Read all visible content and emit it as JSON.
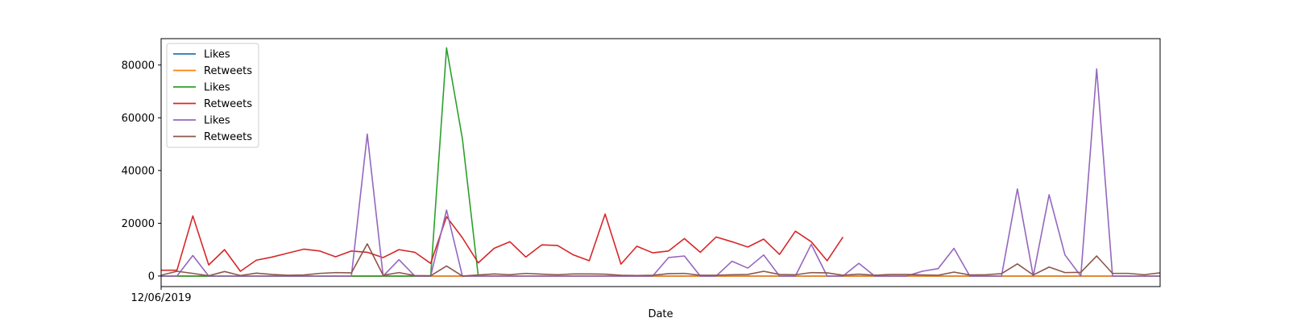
{
  "chart_data": {
    "type": "line",
    "title": "",
    "xlabel": "Date",
    "ylabel": "",
    "x_tick_labels": [
      "12/06/2019"
    ],
    "x_tick_positions": [
      0
    ],
    "x_range": [
      0,
      63
    ],
    "ylim": [
      -4000,
      90000
    ],
    "y_ticks": [
      0,
      20000,
      40000,
      60000,
      80000
    ],
    "y_tick_labels": [
      "0",
      "20000",
      "40000",
      "60000",
      "80000"
    ],
    "grid": false,
    "legend_position": "upper-left",
    "series": [
      {
        "name": "Likes",
        "color": "#1f77b4",
        "points": [
          [
            0,
            0
          ],
          [
            1,
            0
          ],
          [
            2,
            0
          ],
          [
            3,
            0
          ],
          [
            4,
            0
          ],
          [
            5,
            0
          ],
          [
            6,
            0
          ],
          [
            7,
            0
          ],
          [
            8,
            0
          ],
          [
            9,
            0
          ],
          [
            10,
            0
          ],
          [
            11,
            0
          ],
          [
            12,
            0
          ],
          [
            13,
            0
          ],
          [
            14,
            0
          ],
          [
            15,
            0
          ],
          [
            16,
            0
          ],
          [
            17,
            0
          ],
          [
            18,
            0
          ],
          [
            19,
            0
          ],
          [
            20,
            0
          ],
          [
            21,
            0
          ],
          [
            22,
            0
          ],
          [
            23,
            0
          ],
          [
            24,
            0
          ],
          [
            25,
            0
          ],
          [
            26,
            0
          ],
          [
            27,
            0
          ],
          [
            28,
            0
          ],
          [
            29,
            0
          ],
          [
            30,
            0
          ],
          [
            31,
            0
          ],
          [
            32,
            0
          ],
          [
            33,
            0
          ],
          [
            34,
            0
          ],
          [
            35,
            0
          ],
          [
            36,
            0
          ],
          [
            37,
            0
          ],
          [
            38,
            0
          ],
          [
            39,
            0
          ],
          [
            40,
            0
          ],
          [
            41,
            0
          ],
          [
            42,
            0
          ],
          [
            43,
            0
          ],
          [
            44,
            0
          ],
          [
            45,
            0
          ],
          [
            46,
            0
          ],
          [
            47,
            0
          ],
          [
            48,
            0
          ],
          [
            49,
            0
          ],
          [
            50,
            0
          ],
          [
            51,
            0
          ],
          [
            52,
            0
          ],
          [
            53,
            0
          ],
          [
            54,
            0
          ],
          [
            55,
            0
          ],
          [
            56,
            0
          ],
          [
            57,
            0
          ],
          [
            58,
            0
          ],
          [
            59,
            0
          ],
          [
            60,
            0
          ],
          [
            61,
            0
          ],
          [
            62,
            0
          ],
          [
            63,
            0
          ]
        ]
      },
      {
        "name": "Retweets",
        "color": "#ff7f0e",
        "points": [
          [
            0,
            0
          ],
          [
            1,
            0
          ],
          [
            2,
            0
          ],
          [
            3,
            0
          ],
          [
            4,
            0
          ],
          [
            5,
            0
          ],
          [
            6,
            0
          ],
          [
            7,
            0
          ],
          [
            8,
            0
          ],
          [
            9,
            0
          ],
          [
            10,
            0
          ],
          [
            11,
            0
          ],
          [
            12,
            0
          ],
          [
            13,
            0
          ],
          [
            14,
            0
          ],
          [
            15,
            0
          ],
          [
            16,
            0
          ],
          [
            17,
            0
          ],
          [
            18,
            0
          ],
          [
            19,
            0
          ],
          [
            20,
            0
          ],
          [
            21,
            0
          ],
          [
            22,
            0
          ],
          [
            23,
            0
          ],
          [
            24,
            0
          ],
          [
            25,
            0
          ],
          [
            26,
            0
          ],
          [
            27,
            0
          ],
          [
            28,
            0
          ],
          [
            29,
            0
          ],
          [
            30,
            0
          ],
          [
            31,
            0
          ],
          [
            32,
            0
          ],
          [
            33,
            0
          ],
          [
            34,
            0
          ],
          [
            35,
            0
          ],
          [
            36,
            0
          ],
          [
            37,
            0
          ],
          [
            38,
            0
          ],
          [
            39,
            0
          ],
          [
            40,
            0
          ],
          [
            41,
            0
          ],
          [
            42,
            0
          ],
          [
            43,
            0
          ],
          [
            44,
            0
          ],
          [
            45,
            0
          ],
          [
            46,
            0
          ],
          [
            47,
            0
          ],
          [
            48,
            0
          ],
          [
            49,
            0
          ],
          [
            50,
            0
          ],
          [
            51,
            0
          ],
          [
            52,
            0
          ],
          [
            53,
            0
          ],
          [
            54,
            0
          ],
          [
            55,
            0
          ],
          [
            56,
            0
          ],
          [
            57,
            0
          ],
          [
            58,
            0
          ],
          [
            59,
            0
          ],
          [
            60,
            0
          ],
          [
            61,
            0
          ],
          [
            62,
            0
          ],
          [
            63,
            0
          ]
        ]
      },
      {
        "name": "Likes",
        "color": "#2ca02c",
        "points": [
          [
            0,
            0
          ],
          [
            1,
            0
          ],
          [
            2,
            0
          ],
          [
            3,
            0
          ],
          [
            4,
            0
          ],
          [
            5,
            0
          ],
          [
            6,
            0
          ],
          [
            7,
            0
          ],
          [
            8,
            0
          ],
          [
            9,
            0
          ],
          [
            10,
            0
          ],
          [
            11,
            0
          ],
          [
            12,
            0
          ],
          [
            13,
            0
          ],
          [
            14,
            0
          ],
          [
            15,
            0
          ],
          [
            16,
            0
          ],
          [
            17,
            0
          ],
          [
            18,
            86500
          ],
          [
            19,
            52000
          ],
          [
            20,
            0
          ]
        ]
      },
      {
        "name": "Retweets",
        "color": "#d62728",
        "points": [
          [
            0,
            2200
          ],
          [
            1,
            2200
          ],
          [
            2,
            22800
          ],
          [
            3,
            4200
          ],
          [
            4,
            10000
          ],
          [
            5,
            1800
          ],
          [
            6,
            6000
          ],
          [
            7,
            7200
          ],
          [
            8,
            8700
          ],
          [
            9,
            10200
          ],
          [
            10,
            9500
          ],
          [
            11,
            7300
          ],
          [
            12,
            9500
          ],
          [
            13,
            9000
          ],
          [
            14,
            7000
          ],
          [
            15,
            10000
          ],
          [
            16,
            9000
          ],
          [
            17,
            4800
          ],
          [
            18,
            22500
          ],
          [
            19,
            14500
          ],
          [
            20,
            5000
          ],
          [
            21,
            10500
          ],
          [
            22,
            13000
          ],
          [
            23,
            7200
          ],
          [
            24,
            11800
          ],
          [
            25,
            11600
          ],
          [
            26,
            8000
          ],
          [
            27,
            5800
          ],
          [
            28,
            23500
          ],
          [
            29,
            4500
          ],
          [
            30,
            11300
          ],
          [
            31,
            8800
          ],
          [
            32,
            9500
          ],
          [
            33,
            14200
          ],
          [
            34,
            9000
          ],
          [
            35,
            14800
          ],
          [
            36,
            13000
          ],
          [
            37,
            11000
          ],
          [
            38,
            14000
          ],
          [
            39,
            8200
          ],
          [
            40,
            17000
          ],
          [
            41,
            13000
          ],
          [
            42,
            5800
          ],
          [
            43,
            14800
          ]
        ]
      },
      {
        "name": "Likes",
        "color": "#9467bd",
        "points": [
          [
            0,
            0
          ],
          [
            1,
            0
          ],
          [
            2,
            7800
          ],
          [
            3,
            0
          ],
          [
            4,
            0
          ],
          [
            5,
            0
          ],
          [
            6,
            0
          ],
          [
            7,
            0
          ],
          [
            8,
            0
          ],
          [
            9,
            0
          ],
          [
            10,
            0
          ],
          [
            11,
            0
          ],
          [
            12,
            0
          ],
          [
            13,
            53800
          ],
          [
            14,
            0
          ],
          [
            15,
            6200
          ],
          [
            16,
            0
          ],
          [
            17,
            0
          ],
          [
            18,
            25000
          ],
          [
            19,
            0
          ],
          [
            20,
            0
          ],
          [
            21,
            0
          ],
          [
            22,
            0
          ],
          [
            23,
            0
          ],
          [
            24,
            0
          ],
          [
            25,
            0
          ],
          [
            26,
            0
          ],
          [
            27,
            0
          ],
          [
            28,
            0
          ],
          [
            29,
            0
          ],
          [
            30,
            0
          ],
          [
            31,
            0
          ],
          [
            32,
            7000
          ],
          [
            33,
            7600
          ],
          [
            34,
            0
          ],
          [
            35,
            0
          ],
          [
            36,
            5600
          ],
          [
            37,
            3000
          ],
          [
            38,
            8000
          ],
          [
            39,
            0
          ],
          [
            40,
            0
          ],
          [
            41,
            12000
          ],
          [
            42,
            0
          ],
          [
            43,
            0
          ],
          [
            44,
            4800
          ],
          [
            45,
            0
          ],
          [
            46,
            0
          ],
          [
            47,
            0
          ],
          [
            48,
            1800
          ],
          [
            49,
            2800
          ],
          [
            50,
            10500
          ],
          [
            51,
            0
          ],
          [
            52,
            0
          ],
          [
            53,
            0
          ],
          [
            54,
            33000
          ],
          [
            55,
            0
          ],
          [
            56,
            30800
          ],
          [
            57,
            8000
          ],
          [
            58,
            0
          ],
          [
            59,
            78500
          ],
          [
            60,
            0
          ],
          [
            61,
            0
          ],
          [
            62,
            0
          ],
          [
            63,
            0
          ]
        ]
      },
      {
        "name": "Retweets",
        "color": "#8c564b",
        "points": [
          [
            0,
            300
          ],
          [
            1,
            1800
          ],
          [
            2,
            1000
          ],
          [
            3,
            100
          ],
          [
            4,
            1700
          ],
          [
            5,
            200
          ],
          [
            6,
            1100
          ],
          [
            7,
            600
          ],
          [
            8,
            300
          ],
          [
            9,
            400
          ],
          [
            10,
            1000
          ],
          [
            11,
            1300
          ],
          [
            12,
            1200
          ],
          [
            13,
            12200
          ],
          [
            14,
            300
          ],
          [
            15,
            1300
          ],
          [
            16,
            200
          ],
          [
            17,
            100
          ],
          [
            18,
            3800
          ],
          [
            19,
            0
          ],
          [
            20,
            400
          ],
          [
            21,
            800
          ],
          [
            22,
            500
          ],
          [
            23,
            1000
          ],
          [
            24,
            700
          ],
          [
            25,
            500
          ],
          [
            26,
            800
          ],
          [
            27,
            800
          ],
          [
            28,
            700
          ],
          [
            29,
            300
          ],
          [
            30,
            200
          ],
          [
            31,
            300
          ],
          [
            32,
            900
          ],
          [
            33,
            1000
          ],
          [
            34,
            300
          ],
          [
            35,
            300
          ],
          [
            36,
            500
          ],
          [
            37,
            600
          ],
          [
            38,
            1800
          ],
          [
            39,
            600
          ],
          [
            40,
            500
          ],
          [
            41,
            1300
          ],
          [
            42,
            1200
          ],
          [
            43,
            300
          ],
          [
            44,
            700
          ],
          [
            45,
            300
          ],
          [
            46,
            600
          ],
          [
            47,
            600
          ],
          [
            48,
            400
          ],
          [
            49,
            300
          ],
          [
            50,
            1500
          ],
          [
            51,
            400
          ],
          [
            52,
            500
          ],
          [
            53,
            900
          ],
          [
            54,
            4600
          ],
          [
            55,
            400
          ],
          [
            56,
            3400
          ],
          [
            57,
            1300
          ],
          [
            58,
            1400
          ],
          [
            59,
            7600
          ],
          [
            60,
            1000
          ],
          [
            61,
            1000
          ],
          [
            62,
            500
          ],
          [
            63,
            1200
          ]
        ]
      }
    ]
  }
}
